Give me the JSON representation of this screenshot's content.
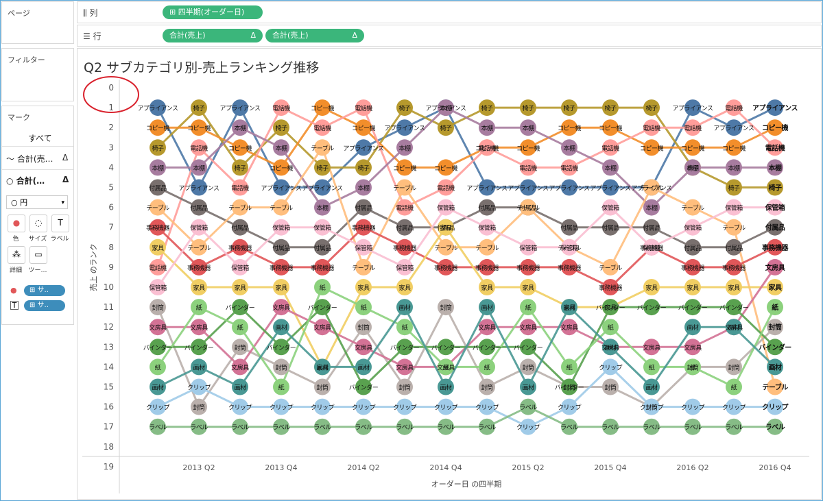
{
  "shelves": {
    "page_label": "ページ",
    "columns_label": "列",
    "columns_pill": "⊞ 四半期(オーダー日)",
    "rows_label": "行",
    "rows_pill_1": "合計(売上)",
    "rows_pill_2": "合計(売上)",
    "delta": "Δ"
  },
  "filters": {
    "label": "フィルター"
  },
  "marks": {
    "label": "マーク",
    "all": "すべて",
    "layer1": "合計(売…",
    "layer2": "合計(…",
    "delta": "Δ",
    "mark_type": "円",
    "buttons": [
      "色",
      "サイズ",
      "ラベル",
      "詳細",
      "ツー…"
    ],
    "button_glyphs": [
      "●",
      "◌",
      "T",
      "⁂",
      "▭"
    ],
    "color_pill": "⊞ サ..",
    "label_pill": "⊞ サ..",
    "label_glyph": "T"
  },
  "chart_data": {
    "type": "line",
    "title": "Q2 サブカテゴリ別-売上ランキング推移",
    "xlabel": "オーダー日 の四半期",
    "ylabel": "売上 のランク",
    "ylim": [
      0,
      19
    ],
    "y_ticks": [
      0,
      1,
      2,
      3,
      4,
      5,
      6,
      7,
      8,
      9,
      10,
      11,
      12,
      13,
      14,
      15,
      16,
      17,
      18,
      19
    ],
    "x": [
      "2013 Q1",
      "2013 Q2",
      "2013 Q3",
      "2013 Q4",
      "2014 Q1",
      "2014 Q2",
      "2014 Q3",
      "2014 Q4",
      "2015 Q1",
      "2015 Q2",
      "2015 Q3",
      "2015 Q4",
      "2016 Q1",
      "2016 Q2",
      "2016 Q3",
      "2016 Q4"
    ],
    "x_tick_labels": [
      "2013 Q2",
      "2013 Q4",
      "2014 Q2",
      "2014 Q4",
      "2015 Q2",
      "2015 Q4",
      "2016 Q2",
      "2016 Q4"
    ],
    "series": [
      {
        "name": "アプライアンス",
        "color": "#4e79a7",
        "values": [
          1,
          5,
          1,
          5,
          5,
          3,
          2,
          1,
          5,
          5,
          5,
          5,
          5,
          1,
          2,
          1
        ]
      },
      {
        "name": "椅子",
        "color": "#b6992d",
        "values": [
          3,
          1,
          4,
          2,
          4,
          4,
          1,
          2,
          1,
          1,
          1,
          1,
          1,
          4,
          5,
          5
        ]
      },
      {
        "name": "コピー機",
        "color": "#f28e2b",
        "values": [
          2,
          2,
          3,
          4,
          1,
          2,
          4,
          4,
          3,
          3,
          2,
          2,
          3,
          3,
          3,
          2
        ]
      },
      {
        "name": "電話機",
        "color": "#ff9d9a",
        "values": [
          9,
          3,
          5,
          1,
          2,
          1,
          6,
          5,
          3,
          4,
          4,
          3,
          2,
          2,
          1,
          3
        ]
      },
      {
        "name": "本棚",
        "color": "#a77c9f",
        "values": [
          4,
          4,
          2,
          3,
          6,
          5,
          3,
          1,
          2,
          2,
          3,
          4,
          6,
          4,
          4,
          4
        ]
      },
      {
        "name": "付属品",
        "color": "#79706e",
        "values": [
          5,
          6,
          7,
          8,
          8,
          6,
          7,
          7,
          6,
          6,
          7,
          7,
          7,
          8,
          8,
          7
        ]
      },
      {
        "name": "テーブル",
        "color": "#ffbe7d",
        "values": [
          6,
          8,
          6,
          6,
          3,
          9,
          5,
          8,
          8,
          6,
          8,
          9,
          5,
          6,
          7,
          15
        ]
      },
      {
        "name": "事務機器",
        "color": "#e15759",
        "values": [
          7,
          9,
          8,
          9,
          9,
          7,
          8,
          9,
          9,
          9,
          9,
          10,
          8,
          9,
          9,
          8
        ]
      },
      {
        "name": "家具",
        "color": "#f1ce63",
        "values": [
          8,
          10,
          10,
          10,
          14,
          10,
          10,
          7,
          10,
          10,
          11,
          11,
          10,
          10,
          10,
          10
        ]
      },
      {
        "name": "保管箱",
        "color": "#fabfd2",
        "values": [
          10,
          7,
          9,
          7,
          7,
          8,
          9,
          6,
          7,
          8,
          8,
          6,
          8,
          7,
          6,
          6
        ]
      },
      {
        "name": "封筒",
        "color": "#bab0ac",
        "values": [
          11,
          16,
          13,
          14,
          15,
          12,
          15,
          11,
          15,
          14,
          15,
          15,
          16,
          14,
          14,
          12
        ]
      },
      {
        "name": "文房具",
        "color": "#d37295",
        "values": [
          12,
          12,
          14,
          11,
          12,
          13,
          14,
          14,
          12,
          12,
          12,
          13,
          13,
          13,
          12,
          9
        ]
      },
      {
        "name": "バインダー",
        "color": "#59a14f",
        "values": [
          13,
          13,
          11,
          13,
          11,
          15,
          13,
          13,
          13,
          13,
          15,
          11,
          11,
          11,
          11,
          13
        ]
      },
      {
        "name": "紙",
        "color": "#8cd17d",
        "values": [
          14,
          11,
          12,
          15,
          10,
          11,
          12,
          14,
          14,
          11,
          14,
          12,
          14,
          14,
          15,
          11
        ]
      },
      {
        "name": "画材",
        "color": "#499894",
        "values": [
          15,
          14,
          15,
          12,
          14,
          14,
          11,
          15,
          11,
          15,
          11,
          13,
          15,
          12,
          12,
          14
        ]
      },
      {
        "name": "クリップ",
        "color": "#a0cbe8",
        "values": [
          16,
          15,
          16,
          16,
          16,
          16,
          16,
          16,
          16,
          17,
          16,
          14,
          16,
          16,
          16,
          16
        ]
      },
      {
        "name": "ラベル",
        "color": "#86bc86",
        "values": [
          17,
          17,
          17,
          17,
          17,
          17,
          17,
          17,
          17,
          16,
          17,
          17,
          17,
          17,
          17,
          17
        ]
      }
    ],
    "grid": false,
    "legend": "none",
    "annotation": "red circle around y=0 tick"
  }
}
